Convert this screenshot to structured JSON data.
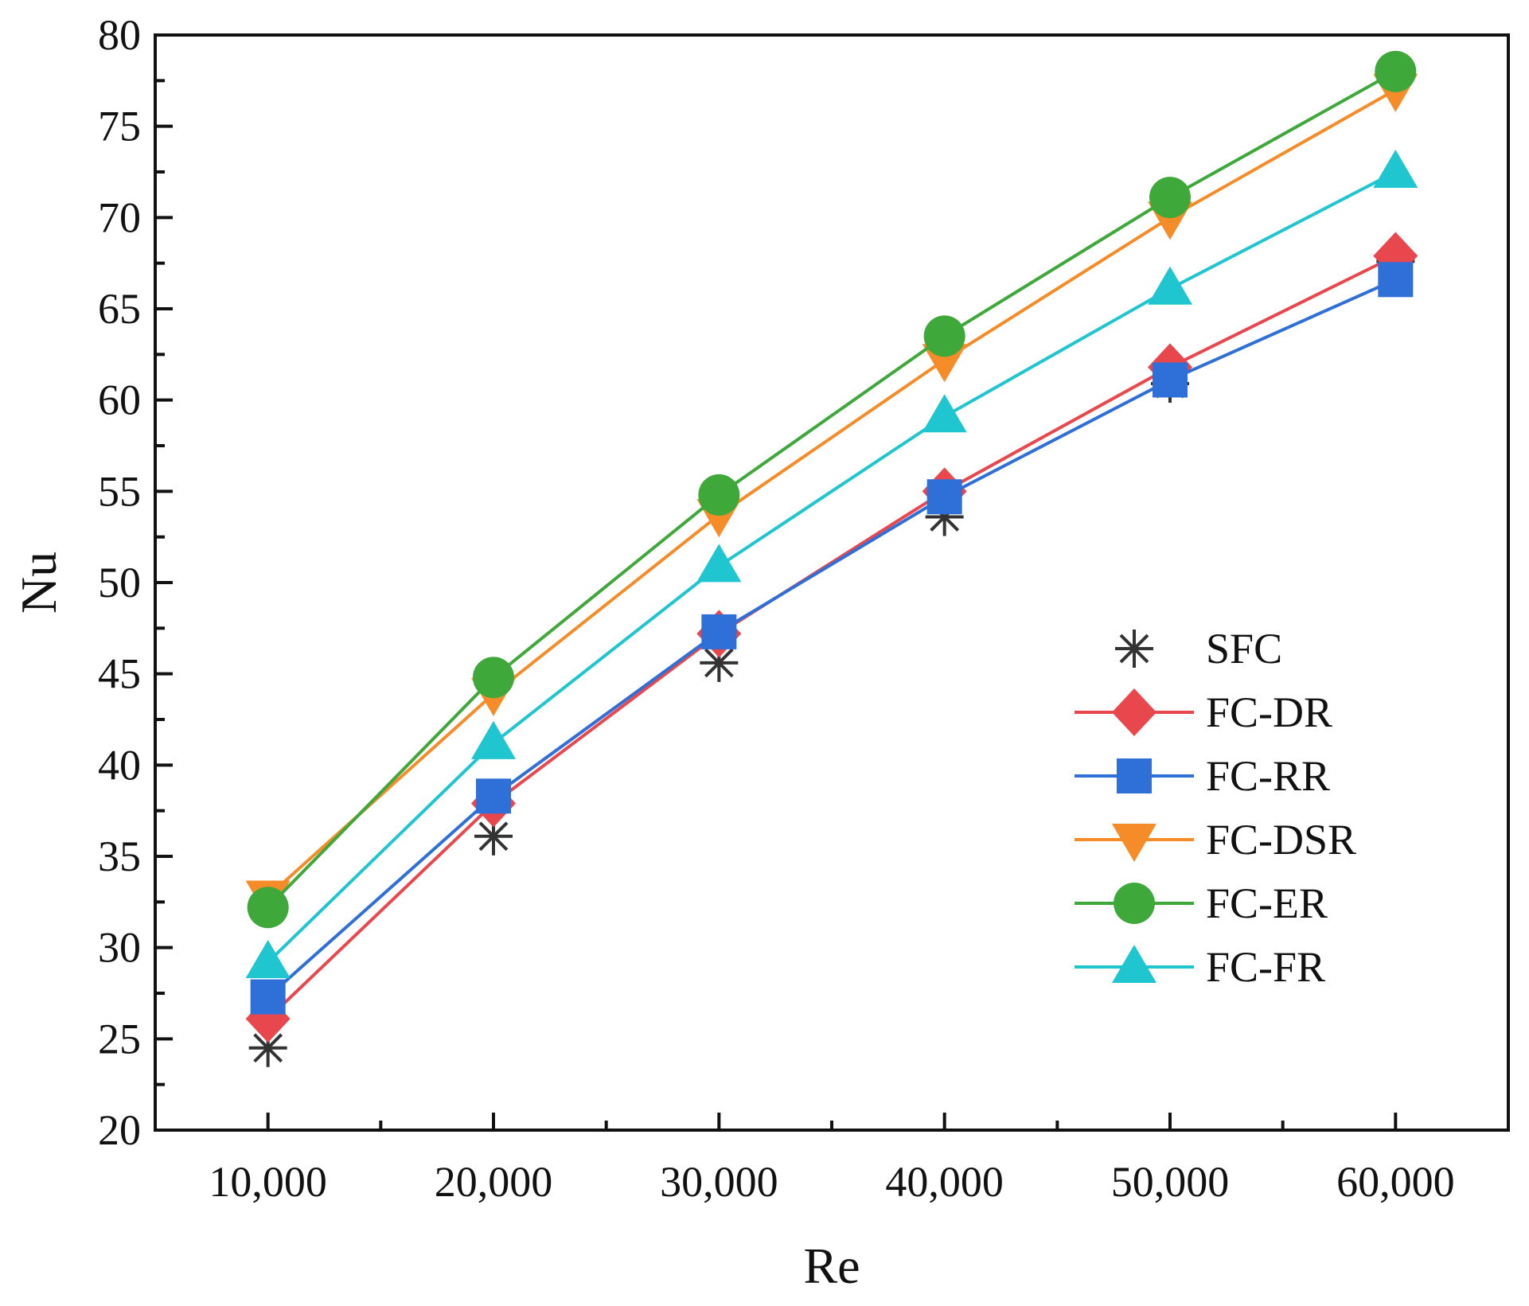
{
  "chart_data": {
    "type": "line",
    "title": "",
    "xlabel": "Re",
    "ylabel": "Nu",
    "x": [
      10000,
      20000,
      30000,
      40000,
      50000,
      60000
    ],
    "x_tick_labels": [
      "10,000",
      "20,000",
      "30,000",
      "40,000",
      "50,000",
      "60,000"
    ],
    "xlim": [
      5000,
      65000
    ],
    "ylim": [
      20,
      80
    ],
    "y_ticks": [
      20,
      25,
      30,
      35,
      40,
      45,
      50,
      55,
      60,
      65,
      70,
      75,
      80
    ],
    "grid": false,
    "legend_position": "right",
    "series": [
      {
        "name": "SFC",
        "marker": "asterisk",
        "color": "#333333",
        "line": false,
        "values": [
          24.5,
          36.1,
          45.6,
          53.6,
          60.9,
          67.6
        ]
      },
      {
        "name": "FC-DR",
        "marker": "diamond",
        "color": "#e8484d",
        "line": true,
        "values": [
          26.1,
          37.9,
          47.2,
          55.0,
          61.8,
          67.9
        ]
      },
      {
        "name": "FC-RR",
        "marker": "square",
        "color": "#2f6fd8",
        "line": true,
        "values": [
          27.3,
          38.3,
          47.3,
          54.7,
          61.1,
          66.6
        ]
      },
      {
        "name": "FC-DSR",
        "marker": "triangle-down",
        "color": "#f68c28",
        "line": true,
        "values": [
          32.8,
          43.9,
          53.7,
          62.2,
          70.0,
          77.0
        ]
      },
      {
        "name": "FC-ER",
        "marker": "circle",
        "color": "#3fa83b",
        "line": true,
        "values": [
          32.2,
          44.8,
          54.8,
          63.5,
          71.1,
          78.0
        ]
      },
      {
        "name": "FC-FR",
        "marker": "triangle-up",
        "color": "#1fc6cf",
        "line": true,
        "values": [
          29.2,
          41.2,
          50.9,
          59.1,
          66.1,
          72.5
        ]
      }
    ]
  }
}
